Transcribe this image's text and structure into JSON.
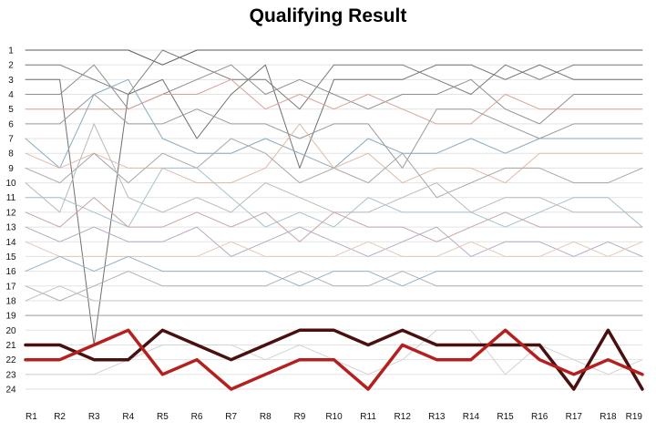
{
  "chart_data": {
    "type": "line",
    "title": "Qualifying Result",
    "xlabel": "",
    "ylabel": "",
    "categories": [
      "R1",
      "R2",
      "R3",
      "R4",
      "R5",
      "R6",
      "R7",
      "R8",
      "R9",
      "R10",
      "R11",
      "R12",
      "R13",
      "R14",
      "R15",
      "R16",
      "R17",
      "R18",
      "R19"
    ],
    "y_ticks": [
      1,
      2,
      3,
      4,
      5,
      6,
      7,
      8,
      9,
      10,
      11,
      12,
      13,
      14,
      15,
      16,
      17,
      18,
      19,
      20,
      21,
      22,
      23,
      24
    ],
    "ylim": [
      1,
      24
    ],
    "y_inverted": true,
    "grid": true,
    "legend": "none",
    "series": [
      {
        "color": "#5b5b5b",
        "width": 1,
        "values": [
          1,
          1,
          1,
          1,
          2,
          1,
          1,
          1,
          1,
          1,
          1,
          1,
          1,
          1,
          1,
          1,
          1,
          1,
          1
        ]
      },
      {
        "color": "#7a7a7a",
        "width": 1,
        "values": [
          2,
          2,
          3,
          4,
          1,
          2,
          3,
          3,
          5,
          2,
          2,
          2,
          3,
          4,
          2,
          3,
          2,
          2,
          2
        ]
      },
      {
        "color": "#6f6f6f",
        "width": 1,
        "values": [
          3,
          3,
          21,
          4,
          3,
          7,
          4,
          2,
          9,
          3,
          3,
          3,
          2,
          2,
          3,
          2,
          3,
          3,
          3
        ]
      },
      {
        "color": "#8f8f8f",
        "width": 1,
        "values": [
          4,
          4,
          2,
          5,
          4,
          3,
          2,
          4,
          3,
          4,
          5,
          4,
          4,
          3,
          5,
          6,
          4,
          4,
          4
        ]
      },
      {
        "color": "#d9a39a",
        "width": 1,
        "values": [
          5,
          5,
          5,
          5,
          4,
          4,
          3,
          5,
          4,
          5,
          4,
          5,
          6,
          6,
          4,
          5,
          5,
          5,
          5
        ]
      },
      {
        "color": "#9a9a9a",
        "width": 1,
        "values": [
          6,
          6,
          4,
          6,
          6,
          5,
          6,
          6,
          7,
          6,
          6,
          9,
          5,
          5,
          6,
          7,
          6,
          6,
          6
        ]
      },
      {
        "color": "#88aabd",
        "width": 1,
        "values": [
          7,
          9,
          4,
          3,
          7,
          8,
          8,
          7,
          8,
          9,
          7,
          8,
          8,
          7,
          8,
          7,
          7,
          7,
          7
        ]
      },
      {
        "color": "#e0b9a6",
        "width": 1,
        "values": [
          8,
          9,
          8,
          9,
          9,
          10,
          10,
          9,
          6,
          9,
          8,
          10,
          9,
          9,
          10,
          8,
          8,
          8,
          8
        ]
      },
      {
        "color": "#a6a6a6",
        "width": 1,
        "values": [
          9,
          10,
          8,
          10,
          8,
          9,
          7,
          8,
          10,
          9,
          10,
          8,
          11,
          10,
          9,
          9,
          10,
          10,
          9
        ]
      },
      {
        "color": "#b9b9b9",
        "width": 1,
        "values": [
          10,
          12,
          6,
          11,
          12,
          11,
          12,
          10,
          11,
          12,
          12,
          11,
          10,
          12,
          11,
          11,
          12,
          12,
          12
        ]
      },
      {
        "color": "#a3c1cf",
        "width": 1,
        "values": [
          11,
          11,
          12,
          13,
          9,
          9,
          11,
          13,
          12,
          13,
          11,
          12,
          12,
          12,
          13,
          12,
          11,
          11,
          13
        ]
      },
      {
        "color": "#c9a3a3",
        "width": 1,
        "values": [
          12,
          13,
          11,
          13,
          13,
          12,
          13,
          12,
          14,
          12,
          13,
          13,
          14,
          13,
          12,
          13,
          13,
          13,
          13
        ]
      },
      {
        "color": "#b7a8c4",
        "width": 1,
        "values": [
          13,
          14,
          13,
          14,
          14,
          13,
          15,
          14,
          13,
          14,
          15,
          14,
          13,
          15,
          14,
          14,
          15,
          14,
          15
        ]
      },
      {
        "color": "#e6c6b5",
        "width": 1,
        "values": [
          14,
          15,
          15,
          15,
          15,
          15,
          14,
          15,
          15,
          15,
          14,
          15,
          15,
          14,
          15,
          15,
          14,
          15,
          14
        ]
      },
      {
        "color": "#8fb2c6",
        "width": 1,
        "values": [
          16,
          15,
          16,
          15,
          16,
          16,
          16,
          16,
          17,
          16,
          16,
          17,
          16,
          16,
          16,
          16,
          16,
          16,
          16
        ]
      },
      {
        "color": "#b0b0b0",
        "width": 1,
        "values": [
          17,
          18,
          17,
          16,
          17,
          17,
          17,
          17,
          16,
          17,
          17,
          16,
          17,
          17,
          17,
          17,
          17,
          17,
          17
        ]
      },
      {
        "color": "#c3c3c3",
        "width": 1,
        "values": [
          18,
          17,
          18,
          18,
          18,
          18,
          18,
          18,
          18,
          18,
          18,
          18,
          18,
          18,
          18,
          18,
          18,
          18,
          18
        ]
      },
      {
        "color": "#9e9e9e",
        "width": 1,
        "values": [
          19,
          19,
          19,
          19,
          19,
          19,
          19,
          19,
          19,
          19,
          19,
          19,
          19,
          19,
          19,
          19,
          19,
          19,
          19
        ]
      },
      {
        "color": "#d2d2d2",
        "width": 1,
        "values": [
          23,
          23,
          23,
          22,
          21,
          21,
          21,
          22,
          21,
          22,
          23,
          22,
          20,
          20,
          23,
          21,
          22,
          23,
          22
        ]
      },
      {
        "color": "#dcdcdc",
        "width": 1,
        "values": [
          24,
          24,
          24,
          24,
          24,
          24,
          24,
          24,
          24,
          24,
          24,
          24,
          24,
          24,
          24,
          24,
          24,
          24,
          24
        ]
      },
      {
        "color": "#4a1010",
        "width": 3.5,
        "values": [
          21,
          21,
          22,
          22,
          20,
          21,
          22,
          21,
          20,
          20,
          21,
          20,
          21,
          21,
          21,
          21,
          24,
          20,
          24
        ]
      },
      {
        "color": "#b5201e",
        "width": 3.5,
        "values": [
          22,
          22,
          21,
          20,
          23,
          22,
          24,
          23,
          22,
          22,
          24,
          21,
          22,
          22,
          20,
          22,
          23,
          22,
          23
        ]
      }
    ]
  }
}
